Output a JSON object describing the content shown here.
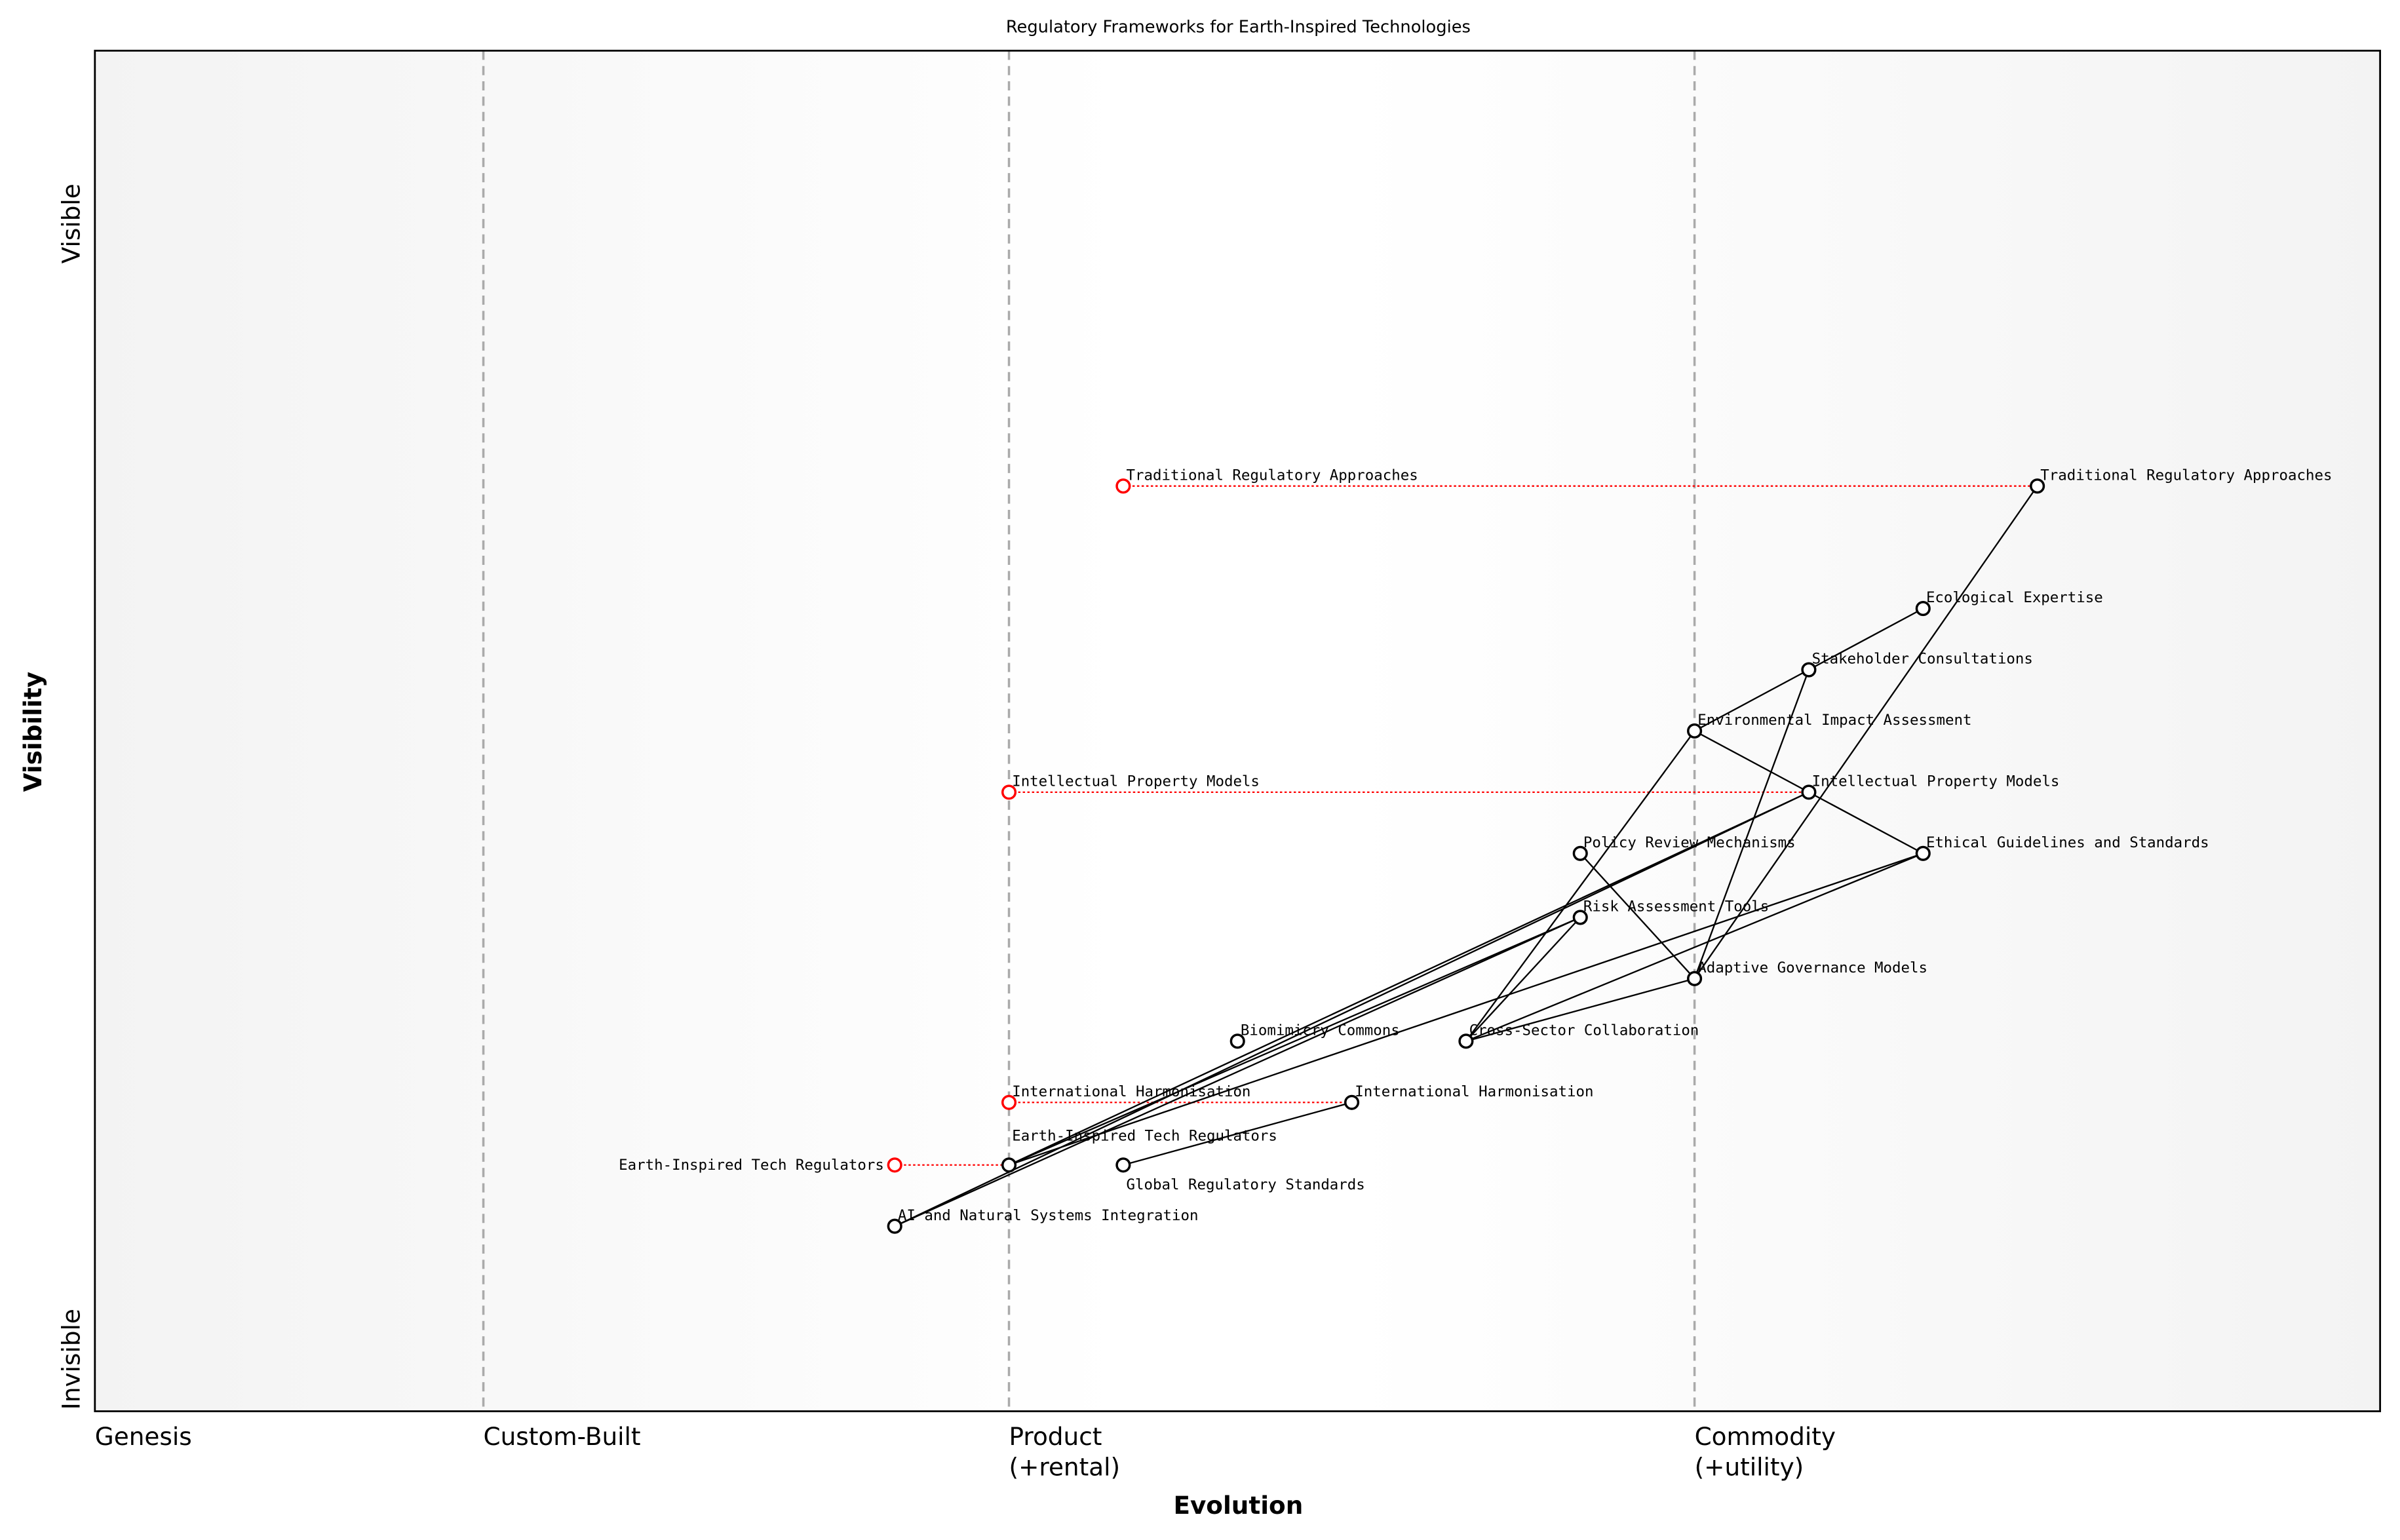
{
  "title": "Regulatory Frameworks for Earth-Inspired Technologies",
  "x_axis": {
    "label": "Evolution",
    "stages": [
      {
        "label": "Genesis",
        "position": 0.0
      },
      {
        "label": "Custom-Built",
        "position": 0.17
      },
      {
        "label": "Product\n(+rental)",
        "position": 0.4
      },
      {
        "label": "Commodity\n(+utility)",
        "position": 0.7
      }
    ]
  },
  "y_axis": {
    "label": "Visibility",
    "top_label": "Visible",
    "bottom_label": "Invisible"
  },
  "colors": {
    "node": "#000000",
    "evolve_marker": "#ff0000",
    "stage_divider": "#aaaaaa",
    "edge": "#000000"
  },
  "components": [
    {
      "name": "Traditional Regulatory Approaches",
      "evolution": 0.85,
      "visibility": 0.68
    },
    {
      "name": "Ecological Expertise",
      "evolution": 0.8,
      "visibility": 0.59
    },
    {
      "name": "Stakeholder Consultations",
      "evolution": 0.75,
      "visibility": 0.545
    },
    {
      "name": "Environmental Impact Assessment",
      "evolution": 0.7,
      "visibility": 0.5
    },
    {
      "name": "Intellectual Property Models",
      "evolution": 0.75,
      "visibility": 0.455
    },
    {
      "name": "Policy Review Mechanisms",
      "evolution": 0.65,
      "visibility": 0.41
    },
    {
      "name": "Ethical Guidelines and Standards",
      "evolution": 0.8,
      "visibility": 0.41
    },
    {
      "name": "Risk Assessment Tools",
      "evolution": 0.65,
      "visibility": 0.363
    },
    {
      "name": "Adaptive Governance Models",
      "evolution": 0.7,
      "visibility": 0.318
    },
    {
      "name": "Biomimicry Commons",
      "evolution": 0.5,
      "visibility": 0.272
    },
    {
      "name": "Cross-Sector Collaboration",
      "evolution": 0.6,
      "visibility": 0.272
    },
    {
      "name": "International Harmonisation",
      "evolution": 0.55,
      "visibility": 0.227
    },
    {
      "name": "Earth-Inspired Tech Regulators",
      "evolution": 0.4,
      "visibility": 0.181
    },
    {
      "name": "Global Regulatory Standards",
      "evolution": 0.45,
      "visibility": 0.181
    },
    {
      "name": "AI and Natural Systems Integration",
      "evolution": 0.35,
      "visibility": 0.136
    }
  ],
  "evolutions": [
    {
      "name": "Traditional Regulatory Approaches",
      "from": 0.45,
      "to": 0.85,
      "visibility": 0.68
    },
    {
      "name": "Intellectual Property Models",
      "from": 0.4,
      "to": 0.75,
      "visibility": 0.455
    },
    {
      "name": "International Harmonisation",
      "from": 0.4,
      "to": 0.55,
      "visibility": 0.227
    },
    {
      "name": "Earth-Inspired Tech Regulators",
      "from": 0.35,
      "to": 0.4,
      "visibility": 0.181
    }
  ],
  "links": [
    [
      "Ecological Expertise",
      "Stakeholder Consultations"
    ],
    [
      "Stakeholder Consultations",
      "Environmental Impact Assessment"
    ],
    [
      "Stakeholder Consultations",
      "Adaptive Governance Models"
    ],
    [
      "Traditional Regulatory Approaches",
      "Adaptive Governance Models"
    ],
    [
      "Environmental Impact Assessment",
      "Intellectual Property Models"
    ],
    [
      "Intellectual Property Models",
      "Ethical Guidelines and Standards"
    ],
    [
      "Environmental Impact Assessment",
      "Cross-Sector Collaboration"
    ],
    [
      "Policy Review Mechanisms",
      "Adaptive Governance Models"
    ],
    [
      "Risk Assessment Tools",
      "Cross-Sector Collaboration"
    ],
    [
      "Cross-Sector Collaboration",
      "Adaptive Governance Models"
    ],
    [
      "Cross-Sector Collaboration",
      "Ethical Guidelines and Standards"
    ],
    [
      "Earth-Inspired Tech Regulators",
      "Intellectual Property Models"
    ],
    [
      "AI and Natural Systems Integration",
      "Intellectual Property Models"
    ],
    [
      "Earth-Inspired Tech Regulators",
      "Risk Assessment Tools"
    ],
    [
      "AI and Natural Systems Integration",
      "Risk Assessment Tools"
    ],
    [
      "Earth-Inspired Tech Regulators",
      "Ethical Guidelines and Standards"
    ],
    [
      "Global Regulatory Standards",
      "International Harmonisation"
    ]
  ]
}
